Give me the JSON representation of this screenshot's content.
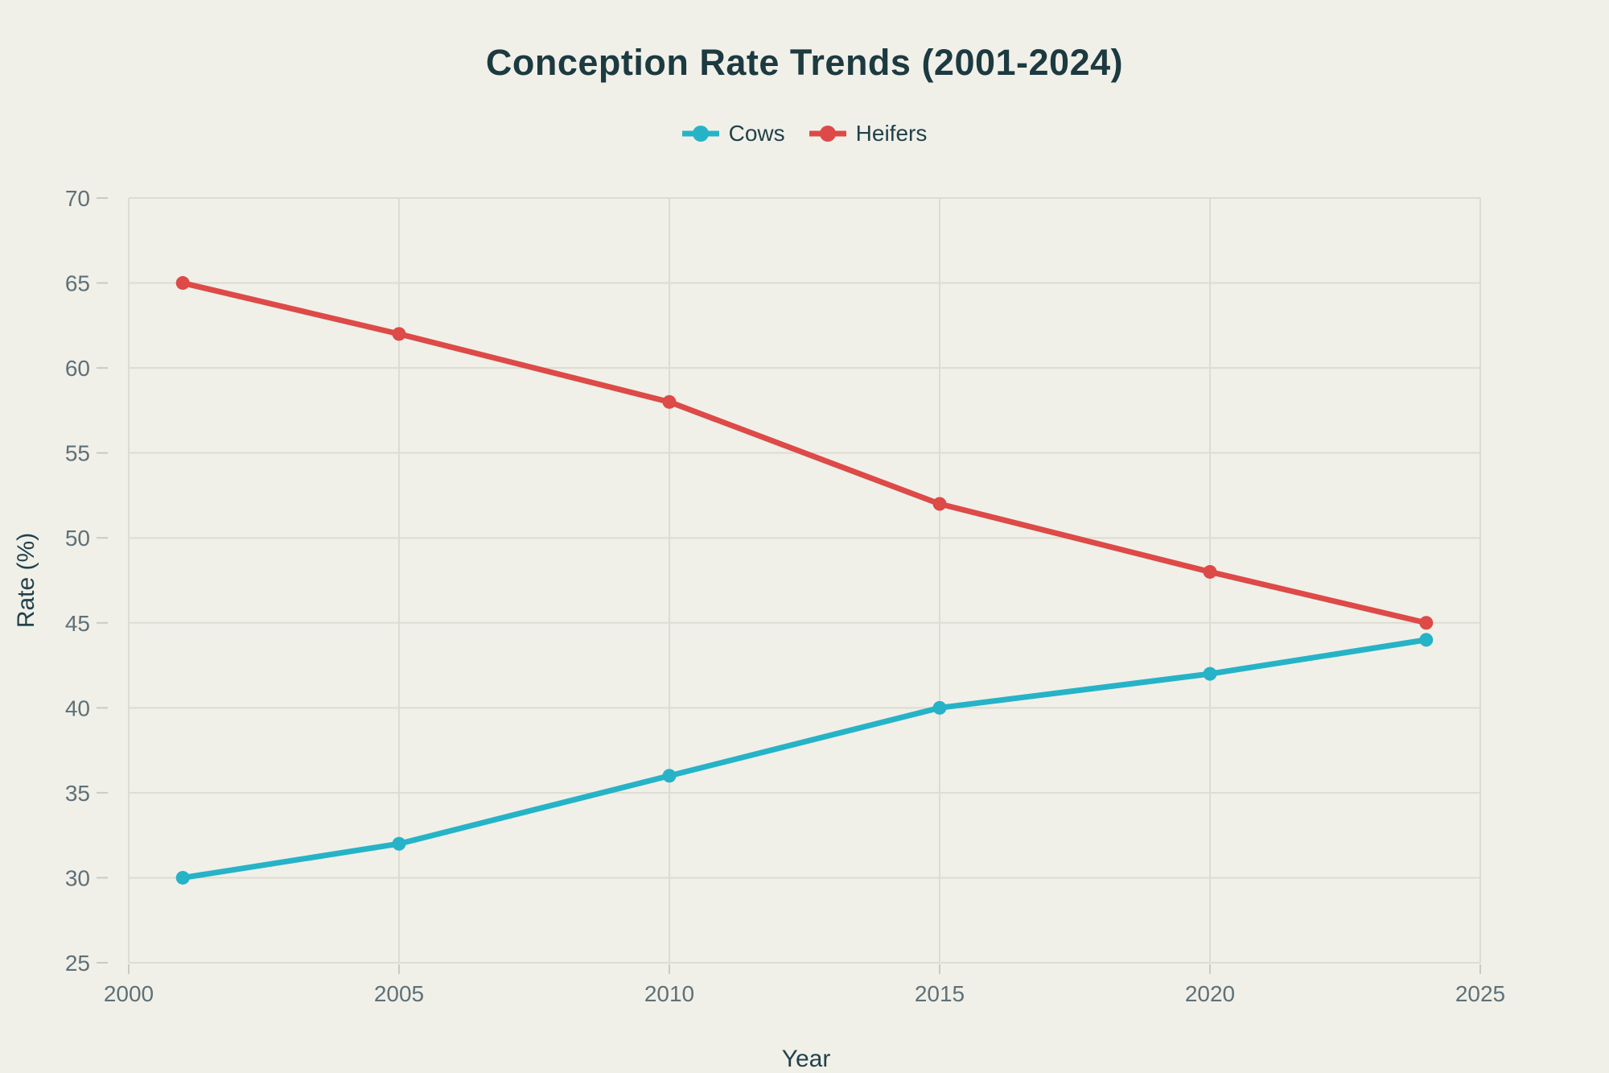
{
  "page": {
    "background": "#f0f0e9"
  },
  "chart_data": {
    "type": "line",
    "title": "Conception Rate Trends (2001-2024)",
    "xlabel": "Year",
    "ylabel": "Rate (%)",
    "x": [
      2001,
      2005,
      2010,
      2015,
      2020,
      2024
    ],
    "series": [
      {
        "name": "Cows",
        "color": "#26b3c7",
        "values": [
          30,
          32,
          36,
          40,
          42,
          44
        ]
      },
      {
        "name": "Heifers",
        "color": "#dd4a47",
        "values": [
          65,
          62,
          58,
          52,
          48,
          45
        ]
      }
    ],
    "xlim": [
      2000,
      2025
    ],
    "ylim": [
      25,
      70
    ],
    "x_ticks": [
      2000,
      2005,
      2010,
      2015,
      2020,
      2025
    ],
    "y_ticks": [
      25,
      30,
      35,
      40,
      45,
      50,
      55,
      60,
      65,
      70
    ],
    "grid": true,
    "legend_position": "top-center",
    "marker": "circle",
    "styles": {
      "grid_color": "#dcdcd2",
      "tick_color": "#c9cbc1",
      "tick_label_color": "#5f7077",
      "title_color": "#1c3a40",
      "axis_label_color": "#22414a",
      "line_width": 7,
      "marker_radius": 8.5
    }
  }
}
